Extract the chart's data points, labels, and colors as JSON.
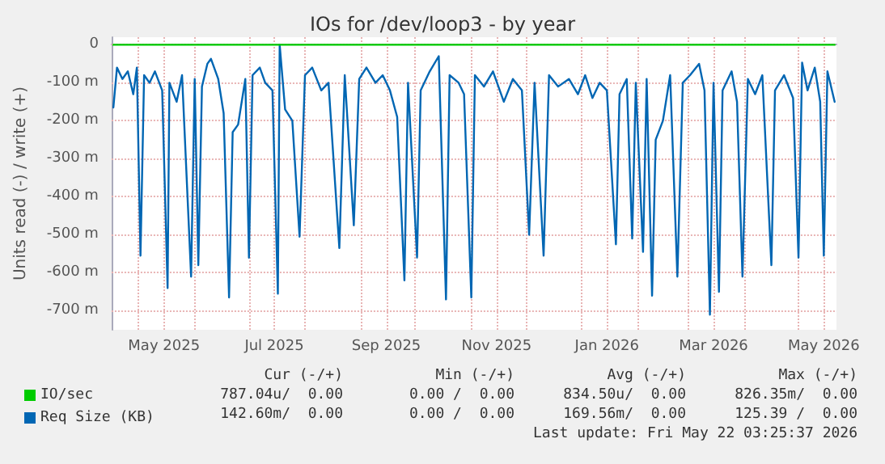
{
  "chart_data": {
    "type": "line",
    "title": "IOs for /dev/loop3 - by year",
    "ylabel": "Units read (-) / write (+)",
    "x": [
      "2025-04-17",
      "2025-04-19",
      "2025-04-22",
      "2025-04-25",
      "2025-04-28",
      "2025-04-30",
      "2025-05-02",
      "2025-05-04",
      "2025-05-07",
      "2025-05-10",
      "2025-05-14",
      "2025-05-17",
      "2025-05-18",
      "2025-05-22",
      "2025-05-25",
      "2025-05-30",
      "2025-06-01",
      "2025-06-03",
      "2025-06-05",
      "2025-06-08",
      "2025-06-10",
      "2025-06-14",
      "2025-06-17",
      "2025-06-20",
      "2025-06-22",
      "2025-06-25",
      "2025-06-29",
      "2025-07-01",
      "2025-07-03",
      "2025-07-07",
      "2025-07-10",
      "2025-07-14",
      "2025-07-17",
      "2025-07-18",
      "2025-07-21",
      "2025-07-25",
      "2025-07-29",
      "2025-08-01",
      "2025-08-05",
      "2025-08-10",
      "2025-08-14",
      "2025-08-20",
      "2025-08-23",
      "2025-08-28",
      "2025-08-31",
      "2025-09-04",
      "2025-09-09",
      "2025-09-13",
      "2025-09-17",
      "2025-09-21",
      "2025-09-25",
      "2025-09-27",
      "2025-10-02",
      "2025-10-04",
      "2025-10-09",
      "2025-10-14",
      "2025-10-18",
      "2025-10-20",
      "2025-10-25",
      "2025-10-28",
      "2025-11-01",
      "2025-11-03",
      "2025-11-08",
      "2025-11-13",
      "2025-11-19",
      "2025-11-24",
      "2025-11-29",
      "2025-12-03",
      "2025-12-06",
      "2025-12-11",
      "2025-12-14",
      "2025-12-19",
      "2025-12-25",
      "2025-12-30",
      "2026-01-03",
      "2026-01-07",
      "2026-01-11",
      "2026-01-15",
      "2026-01-20",
      "2026-01-22",
      "2026-01-26",
      "2026-01-29",
      "2026-01-31",
      "2026-02-04",
      "2026-02-06",
      "2026-02-09",
      "2026-02-11",
      "2026-02-15",
      "2026-02-19",
      "2026-02-23",
      "2026-02-26",
      "2026-03-02",
      "2026-03-07",
      "2026-03-10",
      "2026-03-13",
      "2026-03-15",
      "2026-03-18",
      "2026-03-20",
      "2026-03-25",
      "2026-03-28",
      "2026-03-31",
      "2026-04-03",
      "2026-04-07",
      "2026-04-11",
      "2026-04-16",
      "2026-04-18",
      "2026-04-23",
      "2026-04-28",
      "2026-05-01",
      "2026-05-03",
      "2026-05-06",
      "2026-05-10",
      "2026-05-13",
      "2026-05-15",
      "2026-05-17",
      "2026-05-21"
    ],
    "series": [
      {
        "name": "IO/sec",
        "color": "#00cc00",
        "x": [
          "2025-04-17",
          "2026-05-21"
        ],
        "values": [
          0,
          0
        ]
      },
      {
        "name": "Req Size (KB)",
        "color": "#0066b3",
        "values": [
          -165,
          -60,
          -90,
          -70,
          -130,
          -60,
          -555,
          -80,
          -100,
          -70,
          -120,
          -640,
          -100,
          -150,
          -80,
          -610,
          -90,
          -580,
          -110,
          -50,
          -37,
          -90,
          -180,
          -665,
          -230,
          -210,
          -90,
          -560,
          -80,
          -60,
          -100,
          -120,
          -655,
          0,
          -170,
          -200,
          -505,
          -80,
          -60,
          -120,
          -100,
          -535,
          -80,
          -475,
          -90,
          -60,
          -100,
          -80,
          -120,
          -190,
          -620,
          -100,
          -560,
          -120,
          -70,
          -30,
          -670,
          -80,
          -100,
          -130,
          -665,
          -80,
          -110,
          -70,
          -150,
          -90,
          -120,
          -500,
          -100,
          -555,
          -80,
          -110,
          -90,
          -130,
          -80,
          -140,
          -100,
          -120,
          -525,
          -130,
          -90,
          -510,
          -100,
          -545,
          -90,
          -660,
          -250,
          -200,
          -80,
          -610,
          -100,
          -80,
          -50,
          -120,
          -710,
          -100,
          -650,
          -120,
          -70,
          -150,
          -610,
          -90,
          -130,
          -80,
          -580,
          -120,
          -80,
          -140,
          -560,
          -47,
          -120,
          -60,
          -150,
          -555,
          -70,
          -150
        ]
      }
    ],
    "xlim": [
      "2025-04-16",
      "2026-05-22"
    ],
    "xticks": [
      {
        "value": "2025-05-01",
        "label": null
      },
      {
        "value": "2025-05-15",
        "label": "May 2025"
      },
      {
        "value": "2025-06-01",
        "label": null
      },
      {
        "value": "2025-07-01",
        "label": null
      },
      {
        "value": "2025-07-15",
        "label": "Jul 2025"
      },
      {
        "value": "2025-08-01",
        "label": null
      },
      {
        "value": "2025-09-01",
        "label": null
      },
      {
        "value": "2025-09-15",
        "label": "Sep 2025"
      },
      {
        "value": "2025-10-01",
        "label": null
      },
      {
        "value": "2025-11-01",
        "label": null
      },
      {
        "value": "2025-11-15",
        "label": "Nov 2025"
      },
      {
        "value": "2025-12-01",
        "label": null
      },
      {
        "value": "2026-01-01",
        "label": null
      },
      {
        "value": "2026-01-15",
        "label": "Jan 2026"
      },
      {
        "value": "2026-02-01",
        "label": null
      },
      {
        "value": "2026-03-01",
        "label": null
      },
      {
        "value": "2026-03-15",
        "label": "Mar 2026"
      },
      {
        "value": "2026-04-01",
        "label": null
      },
      {
        "value": "2026-05-01",
        "label": null
      },
      {
        "value": "2026-05-15",
        "label": "May 2026"
      }
    ],
    "ylim": [
      -750,
      20
    ],
    "yticks": [
      {
        "value": 0,
        "label": "0"
      },
      {
        "value": -100,
        "label": "-100 m"
      },
      {
        "value": -200,
        "label": "-200 m"
      },
      {
        "value": -300,
        "label": "-300 m"
      },
      {
        "value": -400,
        "label": "-400 m"
      },
      {
        "value": -500,
        "label": "-500 m"
      },
      {
        "value": -600,
        "label": "-600 m"
      },
      {
        "value": -700,
        "label": "-700 m"
      }
    ],
    "grid": true,
    "legend": "bottom",
    "marker": "none",
    "line_style": "solid",
    "annotations": [
      "Cur (-/+)",
      "Min (-/+)",
      "Avg (-/+)",
      "Max (-/+)",
      "787.04u/  0.00",
      "0.00 /  0.00",
      "834.50u/  0.00",
      "826.35m/  0.00",
      "142.60m/  0.00",
      "0.00 /  0.00",
      "169.56m/  0.00",
      "125.39 /  0.00",
      "Last update: Fri May 22 03:25:37 2026"
    ]
  }
}
